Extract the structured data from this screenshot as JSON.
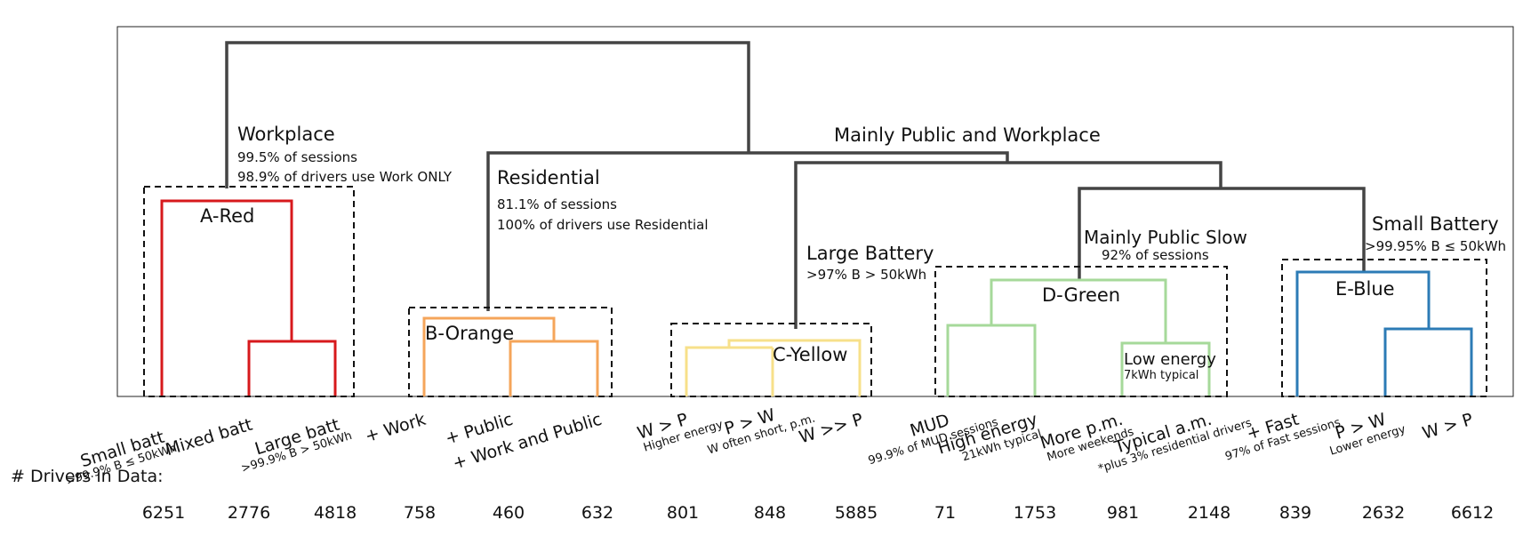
{
  "groups": [
    {
      "key": "workplace",
      "title": "Workplace",
      "lines": [
        "99.5% of sessions",
        "98.9% of drivers use Work ONLY"
      ]
    },
    {
      "key": "public_workplace",
      "title": "Mainly Public and Workplace",
      "lines": []
    },
    {
      "key": "residential",
      "title": "Residential",
      "lines": [
        "81.1% of sessions",
        "100% of drivers use Residential"
      ]
    },
    {
      "key": "large_battery",
      "title": "Large Battery",
      "lines": [
        ">97% B > 50kWh"
      ]
    },
    {
      "key": "public_slow",
      "title": "Mainly Public  Slow",
      "lines": [
        "92% of sessions"
      ]
    },
    {
      "key": "small_battery",
      "title": "Small Battery",
      "lines": [
        ">99.95% B ≤ 50kWh"
      ]
    }
  ],
  "clusters": [
    {
      "key": "a",
      "label": "A-Red",
      "color": "#d7191c"
    },
    {
      "key": "b",
      "label": "B-Orange",
      "color": "#f5a55a"
    },
    {
      "key": "c",
      "label": "C-Yellow",
      "color": "#f7e08a"
    },
    {
      "key": "d",
      "label": "D-Green",
      "color": "#a6d99a"
    },
    {
      "key": "e",
      "label": "E-Blue",
      "color": "#2c7bb6"
    }
  ],
  "low_energy": {
    "title": "Low energy",
    "sub": "7kWh typical"
  },
  "leaves": [
    {
      "label": "Small batt",
      "sub": ">99.9% B ≤ 50kWh",
      "drivers": 6251
    },
    {
      "label": "Mixed batt",
      "sub": "",
      "drivers": 2776
    },
    {
      "label": "Large batt",
      "sub": ">99.9% B > 50kWh",
      "drivers": 4818
    },
    {
      "label": "+ Work",
      "sub": "",
      "drivers": 758
    },
    {
      "label": "+ Public",
      "sub": "",
      "drivers": 460
    },
    {
      "label": "+ Work and Public",
      "sub": "",
      "drivers": 632
    },
    {
      "label": "W > P",
      "sub": "Higher energy",
      "drivers": 801
    },
    {
      "label": "P > W",
      "sub": "W often short, p.m.",
      "drivers": 848
    },
    {
      "label": "W >> P",
      "sub": "",
      "drivers": 5885
    },
    {
      "label": "MUD",
      "sub": "99.9% of MUD sessions",
      "drivers": 71
    },
    {
      "label": "High energy",
      "sub": "21kWh typical",
      "drivers": 1753
    },
    {
      "label": "More p.m.",
      "sub": "More weekends",
      "drivers": 981
    },
    {
      "label": "Typical a.m.",
      "sub": "*plus 3% residential drivers",
      "drivers": 2148
    },
    {
      "label": "+ Fast",
      "sub": "97% of Fast sessions",
      "drivers": 839
    },
    {
      "label": "P > W",
      "sub": "Lower energy",
      "drivers": 2632
    },
    {
      "label": "W > P",
      "sub": "",
      "drivers": 6612
    }
  ],
  "drivers_heading": "# Drivers in Data:"
}
